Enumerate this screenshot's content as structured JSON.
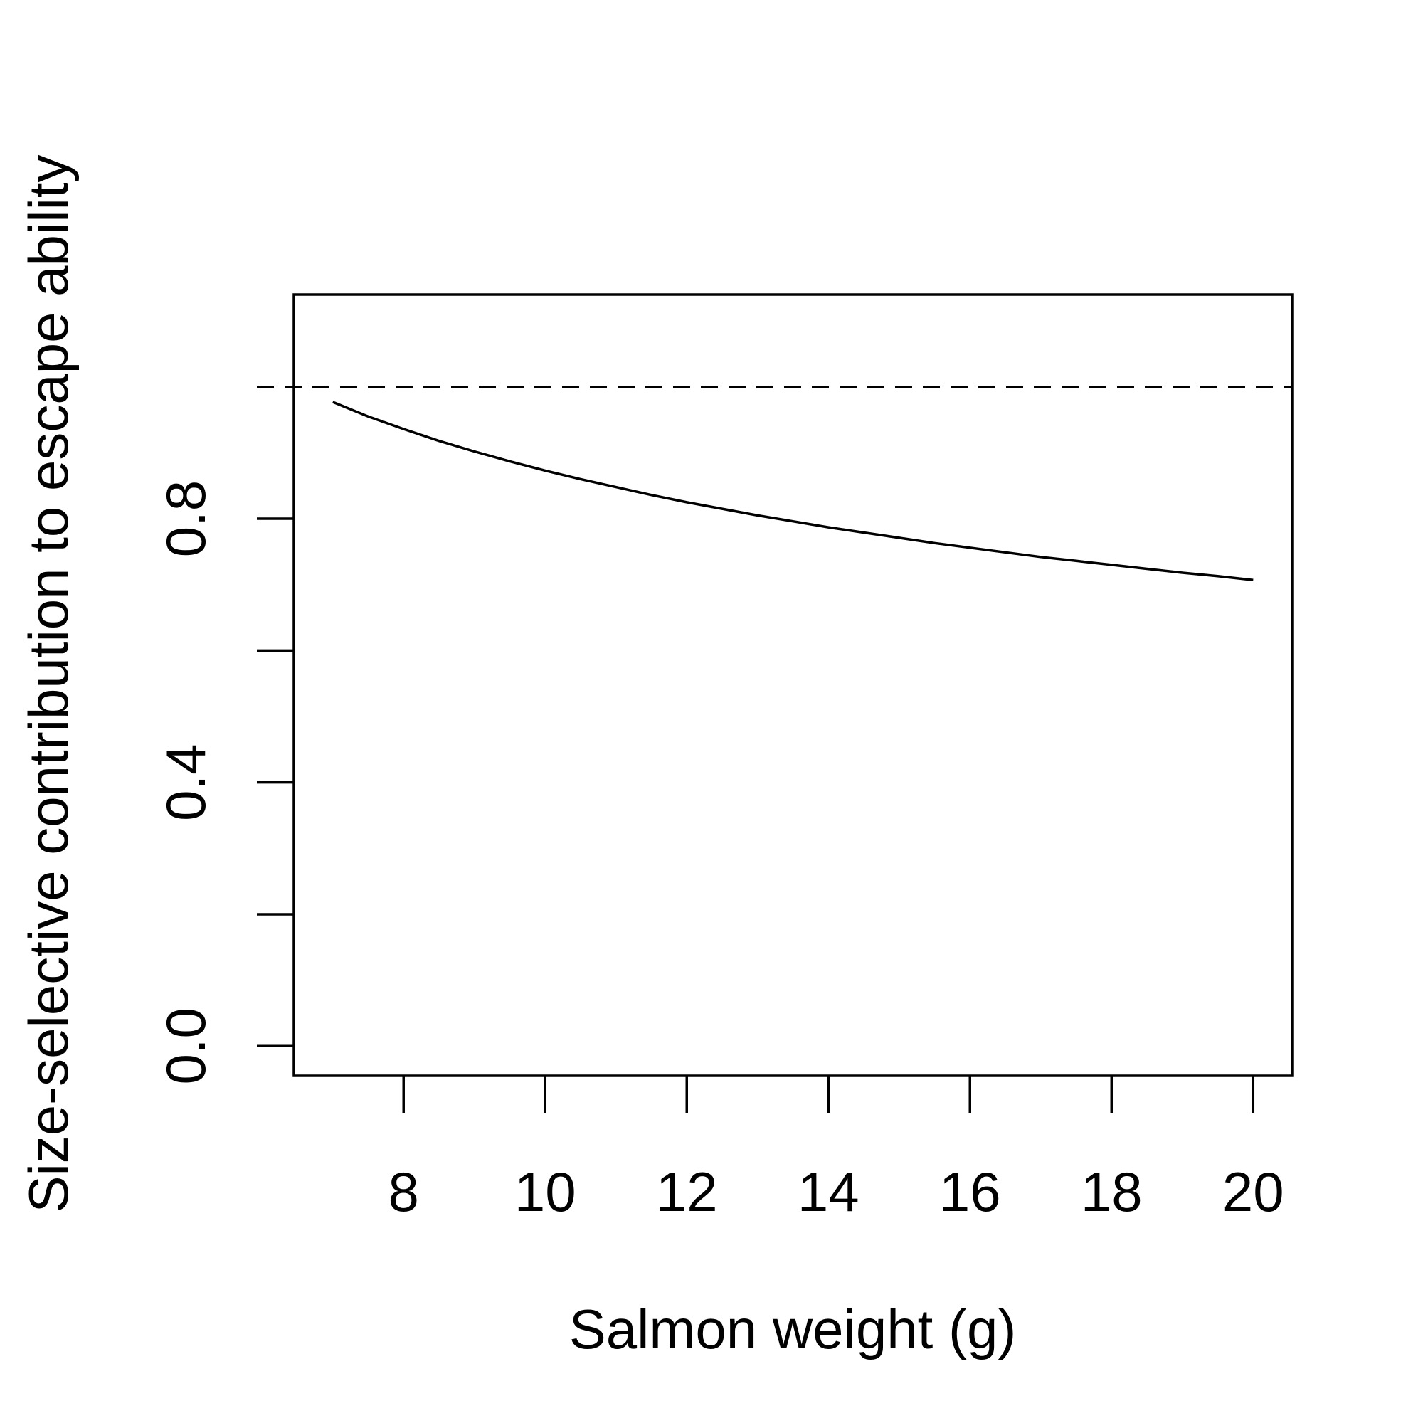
{
  "chart_data": {
    "type": "line",
    "title": "",
    "xlabel": "Salmon weight (g)",
    "ylabel": "Size-selective contribution to escape ability",
    "xlim": [
      6.45,
      20.55
    ],
    "ylim": [
      -0.045,
      1.14
    ],
    "x_ticks": [
      8,
      10,
      12,
      14,
      16,
      18,
      20
    ],
    "x_tick_labels": [
      "8",
      "10",
      "12",
      "14",
      "16",
      "18",
      "20"
    ],
    "y_ticks": [
      0.0,
      0.2,
      0.4,
      0.6,
      0.8,
      1.0
    ],
    "y_tick_labels": [
      "0.0",
      "",
      "0.4",
      "",
      "0.8",
      ""
    ],
    "y_tick_marks": [
      0.0,
      0.2,
      0.4,
      0.6,
      0.8
    ],
    "grid": false,
    "reference_line": {
      "y": 1.0,
      "style": "dashed"
    },
    "series": [
      {
        "x": [
          7,
          7.5,
          8,
          8.5,
          9,
          9.5,
          10,
          10.5,
          11,
          11.5,
          12,
          12.5,
          13,
          13.5,
          14,
          14.5,
          15,
          15.5,
          16,
          16.5,
          17,
          17.5,
          18,
          18.5,
          19,
          19.5,
          20
        ],
        "values": [
          0.977,
          0.955,
          0.936,
          0.918,
          0.902,
          0.887,
          0.873,
          0.86,
          0.848,
          0.836,
          0.825,
          0.815,
          0.805,
          0.796,
          0.787,
          0.779,
          0.771,
          0.763,
          0.756,
          0.749,
          0.742,
          0.736,
          0.73,
          0.724,
          0.718,
          0.713,
          0.707
        ]
      }
    ]
  }
}
